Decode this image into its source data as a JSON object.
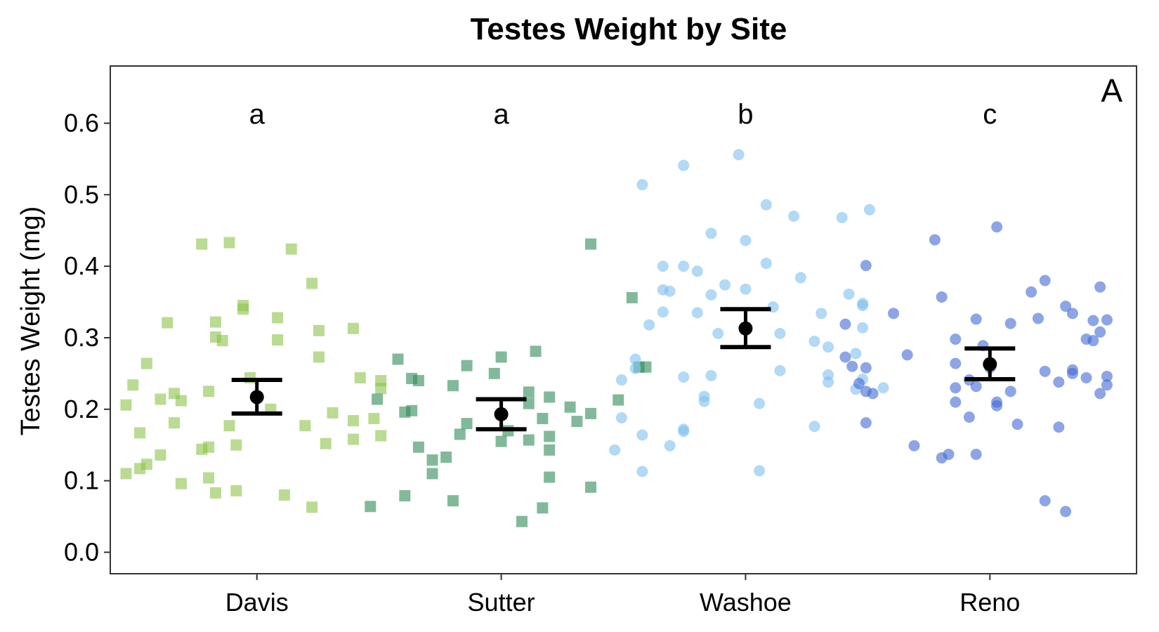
{
  "chart_data": {
    "type": "scatter",
    "title": "Testes Weight by Site",
    "ylabel": "Testes Weight (mg)",
    "xlabel": "",
    "panel_label": "A",
    "ylim": [
      -0.03,
      0.68
    ],
    "y_ticks": [
      "0.0",
      "0.1",
      "0.2",
      "0.3",
      "0.4",
      "0.5",
      "0.6"
    ],
    "grid": false,
    "legend": "none",
    "categories": [
      "Davis",
      "Sutter",
      "Washoe",
      "Reno"
    ],
    "series": [
      {
        "name": "Davis",
        "marker": "square",
        "color": "#8BC34A",
        "significance_letter": "a",
        "mean": 0.217,
        "ci": [
          0.194,
          0.241
        ],
        "points": [
          {
            "x": -0.08,
            "y": 0.431
          },
          {
            "x": -0.04,
            "y": 0.433
          },
          {
            "x": 0.05,
            "y": 0.424
          },
          {
            "x": 0.08,
            "y": 0.376
          },
          {
            "x": -0.02,
            "y": 0.345
          },
          {
            "x": -0.02,
            "y": 0.34
          },
          {
            "x": -0.13,
            "y": 0.321
          },
          {
            "x": -0.06,
            "y": 0.322
          },
          {
            "x": 0.03,
            "y": 0.328
          },
          {
            "x": 0.09,
            "y": 0.31
          },
          {
            "x": 0.14,
            "y": 0.313
          },
          {
            "x": -0.06,
            "y": 0.301
          },
          {
            "x": -0.05,
            "y": 0.296
          },
          {
            "x": 0.03,
            "y": 0.297
          },
          {
            "x": 0.09,
            "y": 0.273
          },
          {
            "x": -0.16,
            "y": 0.264
          },
          {
            "x": 0.15,
            "y": 0.244
          },
          {
            "x": 0.18,
            "y": 0.24
          },
          {
            "x": -0.18,
            "y": 0.234
          },
          {
            "x": -0.01,
            "y": 0.244
          },
          {
            "x": 0.18,
            "y": 0.229
          },
          {
            "x": -0.12,
            "y": 0.222
          },
          {
            "x": -0.07,
            "y": 0.225
          },
          {
            "x": -0.14,
            "y": 0.214
          },
          {
            "x": -0.11,
            "y": 0.212
          },
          {
            "x": -0.19,
            "y": 0.206
          },
          {
            "x": 0.02,
            "y": 0.2
          },
          {
            "x": 0.11,
            "y": 0.195
          },
          {
            "x": 0.17,
            "y": 0.187
          },
          {
            "x": -0.12,
            "y": 0.181
          },
          {
            "x": -0.04,
            "y": 0.177
          },
          {
            "x": 0.07,
            "y": 0.177
          },
          {
            "x": 0.14,
            "y": 0.184
          },
          {
            "x": 0.18,
            "y": 0.163
          },
          {
            "x": -0.17,
            "y": 0.167
          },
          {
            "x": 0.14,
            "y": 0.158
          },
          {
            "x": 0.1,
            "y": 0.152
          },
          {
            "x": -0.07,
            "y": 0.147
          },
          {
            "x": -0.03,
            "y": 0.15
          },
          {
            "x": -0.08,
            "y": 0.144
          },
          {
            "x": -0.14,
            "y": 0.136
          },
          {
            "x": -0.16,
            "y": 0.123
          },
          {
            "x": -0.17,
            "y": 0.117
          },
          {
            "x": -0.19,
            "y": 0.11
          },
          {
            "x": -0.07,
            "y": 0.104
          },
          {
            "x": -0.11,
            "y": 0.096
          },
          {
            "x": -0.03,
            "y": 0.086
          },
          {
            "x": -0.06,
            "y": 0.083
          },
          {
            "x": 0.04,
            "y": 0.08
          },
          {
            "x": 0.08,
            "y": 0.063
          }
        ]
      },
      {
        "name": "Sutter",
        "marker": "square",
        "color": "#2E8B57",
        "significance_letter": "a",
        "mean": 0.193,
        "ci": [
          0.172,
          0.214
        ],
        "points": [
          {
            "x": 0.13,
            "y": 0.431
          },
          {
            "x": 0.19,
            "y": 0.356
          },
          {
            "x": 0.05,
            "y": 0.281
          },
          {
            "x": -0.15,
            "y": 0.27
          },
          {
            "x": 0.0,
            "y": 0.273
          },
          {
            "x": -0.05,
            "y": 0.261
          },
          {
            "x": -0.01,
            "y": 0.25
          },
          {
            "x": 0.2,
            "y": 0.259
          },
          {
            "x": 0.21,
            "y": 0.259
          },
          {
            "x": -0.13,
            "y": 0.243
          },
          {
            "x": -0.12,
            "y": 0.24
          },
          {
            "x": -0.07,
            "y": 0.233
          },
          {
            "x": 0.04,
            "y": 0.224
          },
          {
            "x": 0.07,
            "y": 0.217
          },
          {
            "x": -0.18,
            "y": 0.214
          },
          {
            "x": 0.17,
            "y": 0.213
          },
          {
            "x": 0.04,
            "y": 0.208
          },
          {
            "x": 0.1,
            "y": 0.203
          },
          {
            "x": -0.13,
            "y": 0.198
          },
          {
            "x": -0.14,
            "y": 0.196
          },
          {
            "x": 0.13,
            "y": 0.194
          },
          {
            "x": 0.06,
            "y": 0.187
          },
          {
            "x": 0.11,
            "y": 0.183
          },
          {
            "x": -0.05,
            "y": 0.18
          },
          {
            "x": 0.01,
            "y": 0.17
          },
          {
            "x": -0.06,
            "y": 0.165
          },
          {
            "x": 0.07,
            "y": 0.162
          },
          {
            "x": 0.0,
            "y": 0.155
          },
          {
            "x": 0.04,
            "y": 0.157
          },
          {
            "x": -0.12,
            "y": 0.147
          },
          {
            "x": 0.07,
            "y": 0.143
          },
          {
            "x": -0.08,
            "y": 0.133
          },
          {
            "x": -0.1,
            "y": 0.129
          },
          {
            "x": -0.1,
            "y": 0.11
          },
          {
            "x": 0.07,
            "y": 0.105
          },
          {
            "x": 0.13,
            "y": 0.091
          },
          {
            "x": -0.14,
            "y": 0.079
          },
          {
            "x": -0.07,
            "y": 0.072
          },
          {
            "x": 0.06,
            "y": 0.062
          },
          {
            "x": -0.19,
            "y": 0.064
          },
          {
            "x": 0.03,
            "y": 0.043
          }
        ]
      },
      {
        "name": "Washoe",
        "marker": "circle",
        "color": "#7EC0EE",
        "significance_letter": "b",
        "mean": 0.313,
        "ci": [
          0.287,
          0.34
        ],
        "points": [
          {
            "x": -0.01,
            "y": 0.556
          },
          {
            "x": -0.09,
            "y": 0.541
          },
          {
            "x": -0.15,
            "y": 0.514
          },
          {
            "x": 0.03,
            "y": 0.486
          },
          {
            "x": 0.07,
            "y": 0.47
          },
          {
            "x": 0.14,
            "y": 0.468
          },
          {
            "x": 0.18,
            "y": 0.479
          },
          {
            "x": -0.05,
            "y": 0.446
          },
          {
            "x": 0.0,
            "y": 0.436
          },
          {
            "x": 0.03,
            "y": 0.404
          },
          {
            "x": -0.12,
            "y": 0.4
          },
          {
            "x": -0.09,
            "y": 0.4
          },
          {
            "x": -0.07,
            "y": 0.393
          },
          {
            "x": 0.08,
            "y": 0.384
          },
          {
            "x": -0.03,
            "y": 0.374
          },
          {
            "x": -0.12,
            "y": 0.367
          },
          {
            "x": -0.11,
            "y": 0.365
          },
          {
            "x": -0.05,
            "y": 0.36
          },
          {
            "x": 0.0,
            "y": 0.368
          },
          {
            "x": 0.15,
            "y": 0.361
          },
          {
            "x": 0.17,
            "y": 0.348
          },
          {
            "x": 0.17,
            "y": 0.345
          },
          {
            "x": 0.04,
            "y": 0.343
          },
          {
            "x": -0.12,
            "y": 0.336
          },
          {
            "x": -0.07,
            "y": 0.335
          },
          {
            "x": 0.11,
            "y": 0.334
          },
          {
            "x": -0.14,
            "y": 0.318
          },
          {
            "x": 0.17,
            "y": 0.314
          },
          {
            "x": -0.04,
            "y": 0.306
          },
          {
            "x": 0.05,
            "y": 0.306
          },
          {
            "x": 0.1,
            "y": 0.295
          },
          {
            "x": 0.12,
            "y": 0.287
          },
          {
            "x": 0.16,
            "y": 0.278
          },
          {
            "x": -0.16,
            "y": 0.27
          },
          {
            "x": -0.16,
            "y": 0.257
          },
          {
            "x": 0.05,
            "y": 0.254
          },
          {
            "x": 0.12,
            "y": 0.248
          },
          {
            "x": -0.09,
            "y": 0.245
          },
          {
            "x": -0.05,
            "y": 0.247
          },
          {
            "x": 0.17,
            "y": 0.242
          },
          {
            "x": -0.18,
            "y": 0.241
          },
          {
            "x": 0.12,
            "y": 0.238
          },
          {
            "x": 0.16,
            "y": 0.228
          },
          {
            "x": 0.2,
            "y": 0.23
          },
          {
            "x": -0.06,
            "y": 0.218
          },
          {
            "x": -0.06,
            "y": 0.211
          },
          {
            "x": 0.02,
            "y": 0.208
          },
          {
            "x": -0.18,
            "y": 0.188
          },
          {
            "x": 0.1,
            "y": 0.176
          },
          {
            "x": -0.09,
            "y": 0.172
          },
          {
            "x": -0.09,
            "y": 0.169
          },
          {
            "x": -0.15,
            "y": 0.164
          },
          {
            "x": -0.11,
            "y": 0.149
          },
          {
            "x": -0.19,
            "y": 0.143
          },
          {
            "x": -0.15,
            "y": 0.113
          },
          {
            "x": 0.02,
            "y": 0.114
          }
        ]
      },
      {
        "name": "Reno",
        "marker": "circle",
        "color": "#4169D4",
        "significance_letter": "c",
        "mean": 0.263,
        "ci": [
          0.242,
          0.285
        ],
        "points": [
          {
            "x": 0.01,
            "y": 0.455
          },
          {
            "x": -0.08,
            "y": 0.437
          },
          {
            "x": -0.18,
            "y": 0.401
          },
          {
            "x": 0.08,
            "y": 0.38
          },
          {
            "x": 0.16,
            "y": 0.371
          },
          {
            "x": 0.06,
            "y": 0.364
          },
          {
            "x": -0.07,
            "y": 0.357
          },
          {
            "x": 0.11,
            "y": 0.344
          },
          {
            "x": -0.14,
            "y": 0.334
          },
          {
            "x": 0.12,
            "y": 0.334
          },
          {
            "x": 0.07,
            "y": 0.327
          },
          {
            "x": -0.02,
            "y": 0.326
          },
          {
            "x": 0.03,
            "y": 0.32
          },
          {
            "x": 0.15,
            "y": 0.324
          },
          {
            "x": 0.17,
            "y": 0.325
          },
          {
            "x": -0.21,
            "y": 0.319
          },
          {
            "x": 0.16,
            "y": 0.308
          },
          {
            "x": -0.05,
            "y": 0.298
          },
          {
            "x": 0.14,
            "y": 0.298
          },
          {
            "x": 0.15,
            "y": 0.296
          },
          {
            "x": -0.01,
            "y": 0.289
          },
          {
            "x": -0.21,
            "y": 0.273
          },
          {
            "x": -0.12,
            "y": 0.276
          },
          {
            "x": -0.05,
            "y": 0.264
          },
          {
            "x": 0.0,
            "y": 0.258
          },
          {
            "x": -0.18,
            "y": 0.258
          },
          {
            "x": -0.2,
            "y": 0.26
          },
          {
            "x": 0.12,
            "y": 0.255
          },
          {
            "x": 0.12,
            "y": 0.25
          },
          {
            "x": 0.08,
            "y": 0.253
          },
          {
            "x": 0.17,
            "y": 0.246
          },
          {
            "x": -0.03,
            "y": 0.241
          },
          {
            "x": 0.14,
            "y": 0.244
          },
          {
            "x": -0.19,
            "y": 0.236
          },
          {
            "x": 0.1,
            "y": 0.238
          },
          {
            "x": 0.17,
            "y": 0.234
          },
          {
            "x": -0.02,
            "y": 0.232
          },
          {
            "x": -0.05,
            "y": 0.23
          },
          {
            "x": -0.18,
            "y": 0.225
          },
          {
            "x": -0.17,
            "y": 0.222
          },
          {
            "x": 0.03,
            "y": 0.225
          },
          {
            "x": 0.16,
            "y": 0.222
          },
          {
            "x": -0.05,
            "y": 0.21
          },
          {
            "x": 0.01,
            "y": 0.21
          },
          {
            "x": 0.01,
            "y": 0.205
          },
          {
            "x": -0.03,
            "y": 0.189
          },
          {
            "x": -0.18,
            "y": 0.181
          },
          {
            "x": 0.04,
            "y": 0.179
          },
          {
            "x": 0.1,
            "y": 0.175
          },
          {
            "x": -0.11,
            "y": 0.149
          },
          {
            "x": -0.06,
            "y": 0.137
          },
          {
            "x": -0.02,
            "y": 0.137
          },
          {
            "x": -0.07,
            "y": 0.132
          },
          {
            "x": 0.08,
            "y": 0.072
          },
          {
            "x": 0.11,
            "y": 0.057
          }
        ]
      }
    ]
  }
}
